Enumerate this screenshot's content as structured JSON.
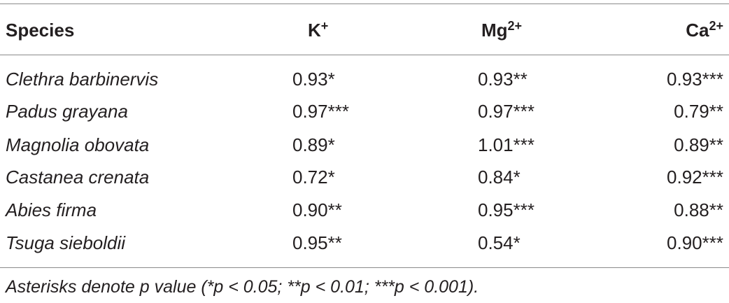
{
  "table": {
    "header": [
      {
        "text": "Species"
      },
      {
        "text": "K",
        "sup": "+"
      },
      {
        "text": "Mg",
        "sup": "2+"
      },
      {
        "text": "Ca",
        "sup": "2+"
      }
    ],
    "rows": [
      [
        "Clethra barbinervis",
        "0.93*",
        "0.93**",
        "0.93***"
      ],
      [
        "Padus grayana",
        "0.97***",
        "0.97***",
        "0.79**"
      ],
      [
        "Magnolia obovata",
        "0.89*",
        "1.01***",
        "0.89**"
      ],
      [
        "Castanea crenata",
        "0.72*",
        "0.84*",
        "0.92***"
      ],
      [
        "Abies firma",
        "0.90**",
        "0.95***",
        "0.88**"
      ],
      [
        "Tsuga sieboldii",
        "0.95**",
        "0.54*",
        "0.90***"
      ]
    ],
    "footnote": "Asterisks denote p value (*p < 0.05; **p < 0.01; ***p < 0.001)."
  }
}
